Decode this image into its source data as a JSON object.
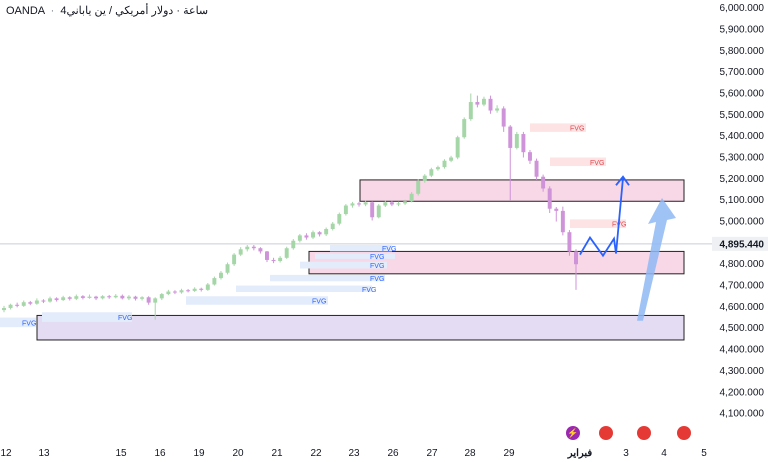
{
  "header": {
    "broker": "OANDA",
    "separator": "·",
    "timeframe": "4ساعة",
    "symbol": "دولار أمريكي / ين ياباني",
    "timeframe_display": "4ساعة · دولار أمريكي / ين ياباني"
  },
  "colors": {
    "up_candle": "#a5d6a7",
    "down_candle": "#ce93d8",
    "zone_pink_fill": "#f8d7e6",
    "zone_pink_border": "#222222",
    "zone_purple_fill": "#e4dcf3",
    "fvg_blue_fill": "#e3ecfb",
    "fvg_blue_text": "#2962ff",
    "fvg_red_fill": "#fde3e3",
    "fvg_red_text": "#e0484f",
    "arrow_blue": "#2962ff",
    "arrow_light": "#8fb8f5",
    "price_line": "#c9ced6"
  },
  "chart_data": {
    "type": "candlestick",
    "y_axis": {
      "ticks": [
        "6,000.000",
        "5,900.000",
        "5,800.000",
        "5,700.000",
        "5,600.000",
        "5,500.000",
        "5,400.000",
        "5,300.000",
        "5,200.000",
        "5,100.000",
        "5,000.000",
        "4,900.000",
        "4,800.000",
        "4,700.000",
        "4,600.000",
        "4,500.000",
        "4,400.000",
        "4,300.000",
        "4,200.000",
        "4,100.000"
      ],
      "range": [
        4070,
        6010
      ]
    },
    "x_axis": {
      "ticks": [
        "12",
        "13",
        "15",
        "16",
        "19",
        "20",
        "21",
        "22",
        "23",
        "26",
        "27",
        "28",
        "29",
        "فبراير",
        "3",
        "4",
        "5"
      ]
    },
    "current_price": "4,895.440",
    "candles": [
      [
        4585,
        4595,
        4575,
        4605
      ],
      [
        4595,
        4610,
        4588,
        4615
      ],
      [
        4610,
        4605,
        4598,
        4620
      ],
      [
        4605,
        4622,
        4600,
        4630
      ],
      [
        4622,
        4615,
        4608,
        4628
      ],
      [
        4615,
        4630,
        4610,
        4640
      ],
      [
        4630,
        4625,
        4618,
        4636
      ],
      [
        4625,
        4640,
        4620,
        4648
      ],
      [
        4640,
        4632,
        4625,
        4645
      ],
      [
        4632,
        4645,
        4628,
        4652
      ],
      [
        4645,
        4638,
        4630,
        4650
      ],
      [
        4638,
        4650,
        4632,
        4658
      ],
      [
        4650,
        4642,
        4635,
        4655
      ],
      [
        4642,
        4648,
        4638,
        4658
      ],
      [
        4648,
        4640,
        4632,
        4652
      ],
      [
        4640,
        4650,
        4635,
        4655
      ],
      [
        4650,
        4645,
        4638,
        4656
      ],
      [
        4645,
        4652,
        4640,
        4660
      ],
      [
        4652,
        4640,
        4635,
        4658
      ],
      [
        4640,
        4648,
        4632,
        4655
      ],
      [
        4648,
        4638,
        4630,
        4652
      ],
      [
        4638,
        4645,
        4630,
        4650
      ],
      [
        4645,
        4620,
        4610,
        4650
      ],
      [
        4620,
        4640,
        4540,
        4645
      ],
      [
        4640,
        4660,
        4632,
        4665
      ],
      [
        4660,
        4672,
        4655,
        4680
      ],
      [
        4672,
        4668,
        4660,
        4678
      ],
      [
        4668,
        4678,
        4662,
        4685
      ],
      [
        4678,
        4675,
        4668,
        4684
      ],
      [
        4675,
        4685,
        4670,
        4692
      ],
      [
        4685,
        4680,
        4672,
        4690
      ],
      [
        4680,
        4705,
        4675,
        4712
      ],
      [
        4705,
        4735,
        4700,
        4742
      ],
      [
        4735,
        4760,
        4728,
        4768
      ],
      [
        4760,
        4800,
        4752,
        4808
      ],
      [
        4800,
        4845,
        4792,
        4852
      ],
      [
        4845,
        4870,
        4838,
        4880
      ],
      [
        4870,
        4882,
        4860,
        4890
      ],
      [
        4882,
        4875,
        4865,
        4890
      ],
      [
        4875,
        4860,
        4850,
        4880
      ],
      [
        4860,
        4820,
        4810,
        4862
      ],
      [
        4820,
        4815,
        4805,
        4830
      ],
      [
        4815,
        4830,
        4808,
        4838
      ],
      [
        4830,
        4875,
        4825,
        4882
      ],
      [
        4875,
        4910,
        4868,
        4918
      ],
      [
        4910,
        4935,
        4902,
        4942
      ],
      [
        4935,
        4925,
        4915,
        4945
      ],
      [
        4925,
        4950,
        4918,
        4958
      ],
      [
        4950,
        4940,
        4930,
        4955
      ],
      [
        4940,
        4965,
        4932,
        4972
      ],
      [
        4965,
        4990,
        4958,
        4998
      ],
      [
        4990,
        5035,
        4982,
        5042
      ],
      [
        5035,
        5075,
        5028,
        5082
      ],
      [
        5075,
        5085,
        5065,
        5092
      ],
      [
        5085,
        5080,
        5070,
        5092
      ],
      [
        5080,
        5090,
        5072,
        5098
      ],
      [
        5090,
        5020,
        5005,
        5095
      ],
      [
        5020,
        5075,
        5015,
        5082
      ],
      [
        5075,
        5090,
        5068,
        5098
      ],
      [
        5090,
        5080,
        5072,
        5098
      ],
      [
        5080,
        5085,
        5072,
        5094
      ],
      [
        5085,
        5095,
        5078,
        5102
      ],
      [
        5095,
        5130,
        5090,
        5138
      ],
      [
        5130,
        5190,
        5122,
        5198
      ],
      [
        5190,
        5215,
        5182,
        5222
      ],
      [
        5215,
        5245,
        5208,
        5252
      ],
      [
        5245,
        5255,
        5238,
        5262
      ],
      [
        5255,
        5285,
        5248,
        5292
      ],
      [
        5285,
        5300,
        5278,
        5308
      ],
      [
        5300,
        5395,
        5292,
        5402
      ],
      [
        5395,
        5480,
        5388,
        5488
      ],
      [
        5480,
        5560,
        5472,
        5600
      ],
      [
        5560,
        5548,
        5535,
        5590
      ],
      [
        5548,
        5575,
        5540,
        5585
      ],
      [
        5575,
        5520,
        5505,
        5590
      ],
      [
        5520,
        5530,
        5510,
        5545
      ],
      [
        5530,
        5445,
        5420,
        5540
      ],
      [
        5445,
        5345,
        5100,
        5452
      ],
      [
        5345,
        5410,
        5338,
        5420
      ],
      [
        5410,
        5325,
        5300,
        5420
      ],
      [
        5325,
        5285,
        5270,
        5335
      ],
      [
        5285,
        5210,
        5195,
        5295
      ],
      [
        5210,
        5155,
        5140,
        5220
      ],
      [
        5155,
        5060,
        5040,
        5165
      ],
      [
        5060,
        5050,
        5000,
        5068
      ],
      [
        5050,
        4950,
        4935,
        5070
      ],
      [
        4950,
        4860,
        4840,
        4960
      ],
      [
        4860,
        4800,
        4680,
        4870
      ]
    ],
    "zones": [
      {
        "type": "supply",
        "label": "",
        "high": 5195,
        "low": 5095
      },
      {
        "type": "demand",
        "label": "",
        "high": 4860,
        "low": 4755
      },
      {
        "type": "demand",
        "label": "",
        "high": 4560,
        "low": 4445
      }
    ],
    "fvg_labels": [
      "FVG",
      "FVG",
      "FVG",
      "FVG",
      "FVG",
      "FVG",
      "FVG",
      "FVG",
      "FVG",
      "FVG",
      "FVG"
    ]
  }
}
